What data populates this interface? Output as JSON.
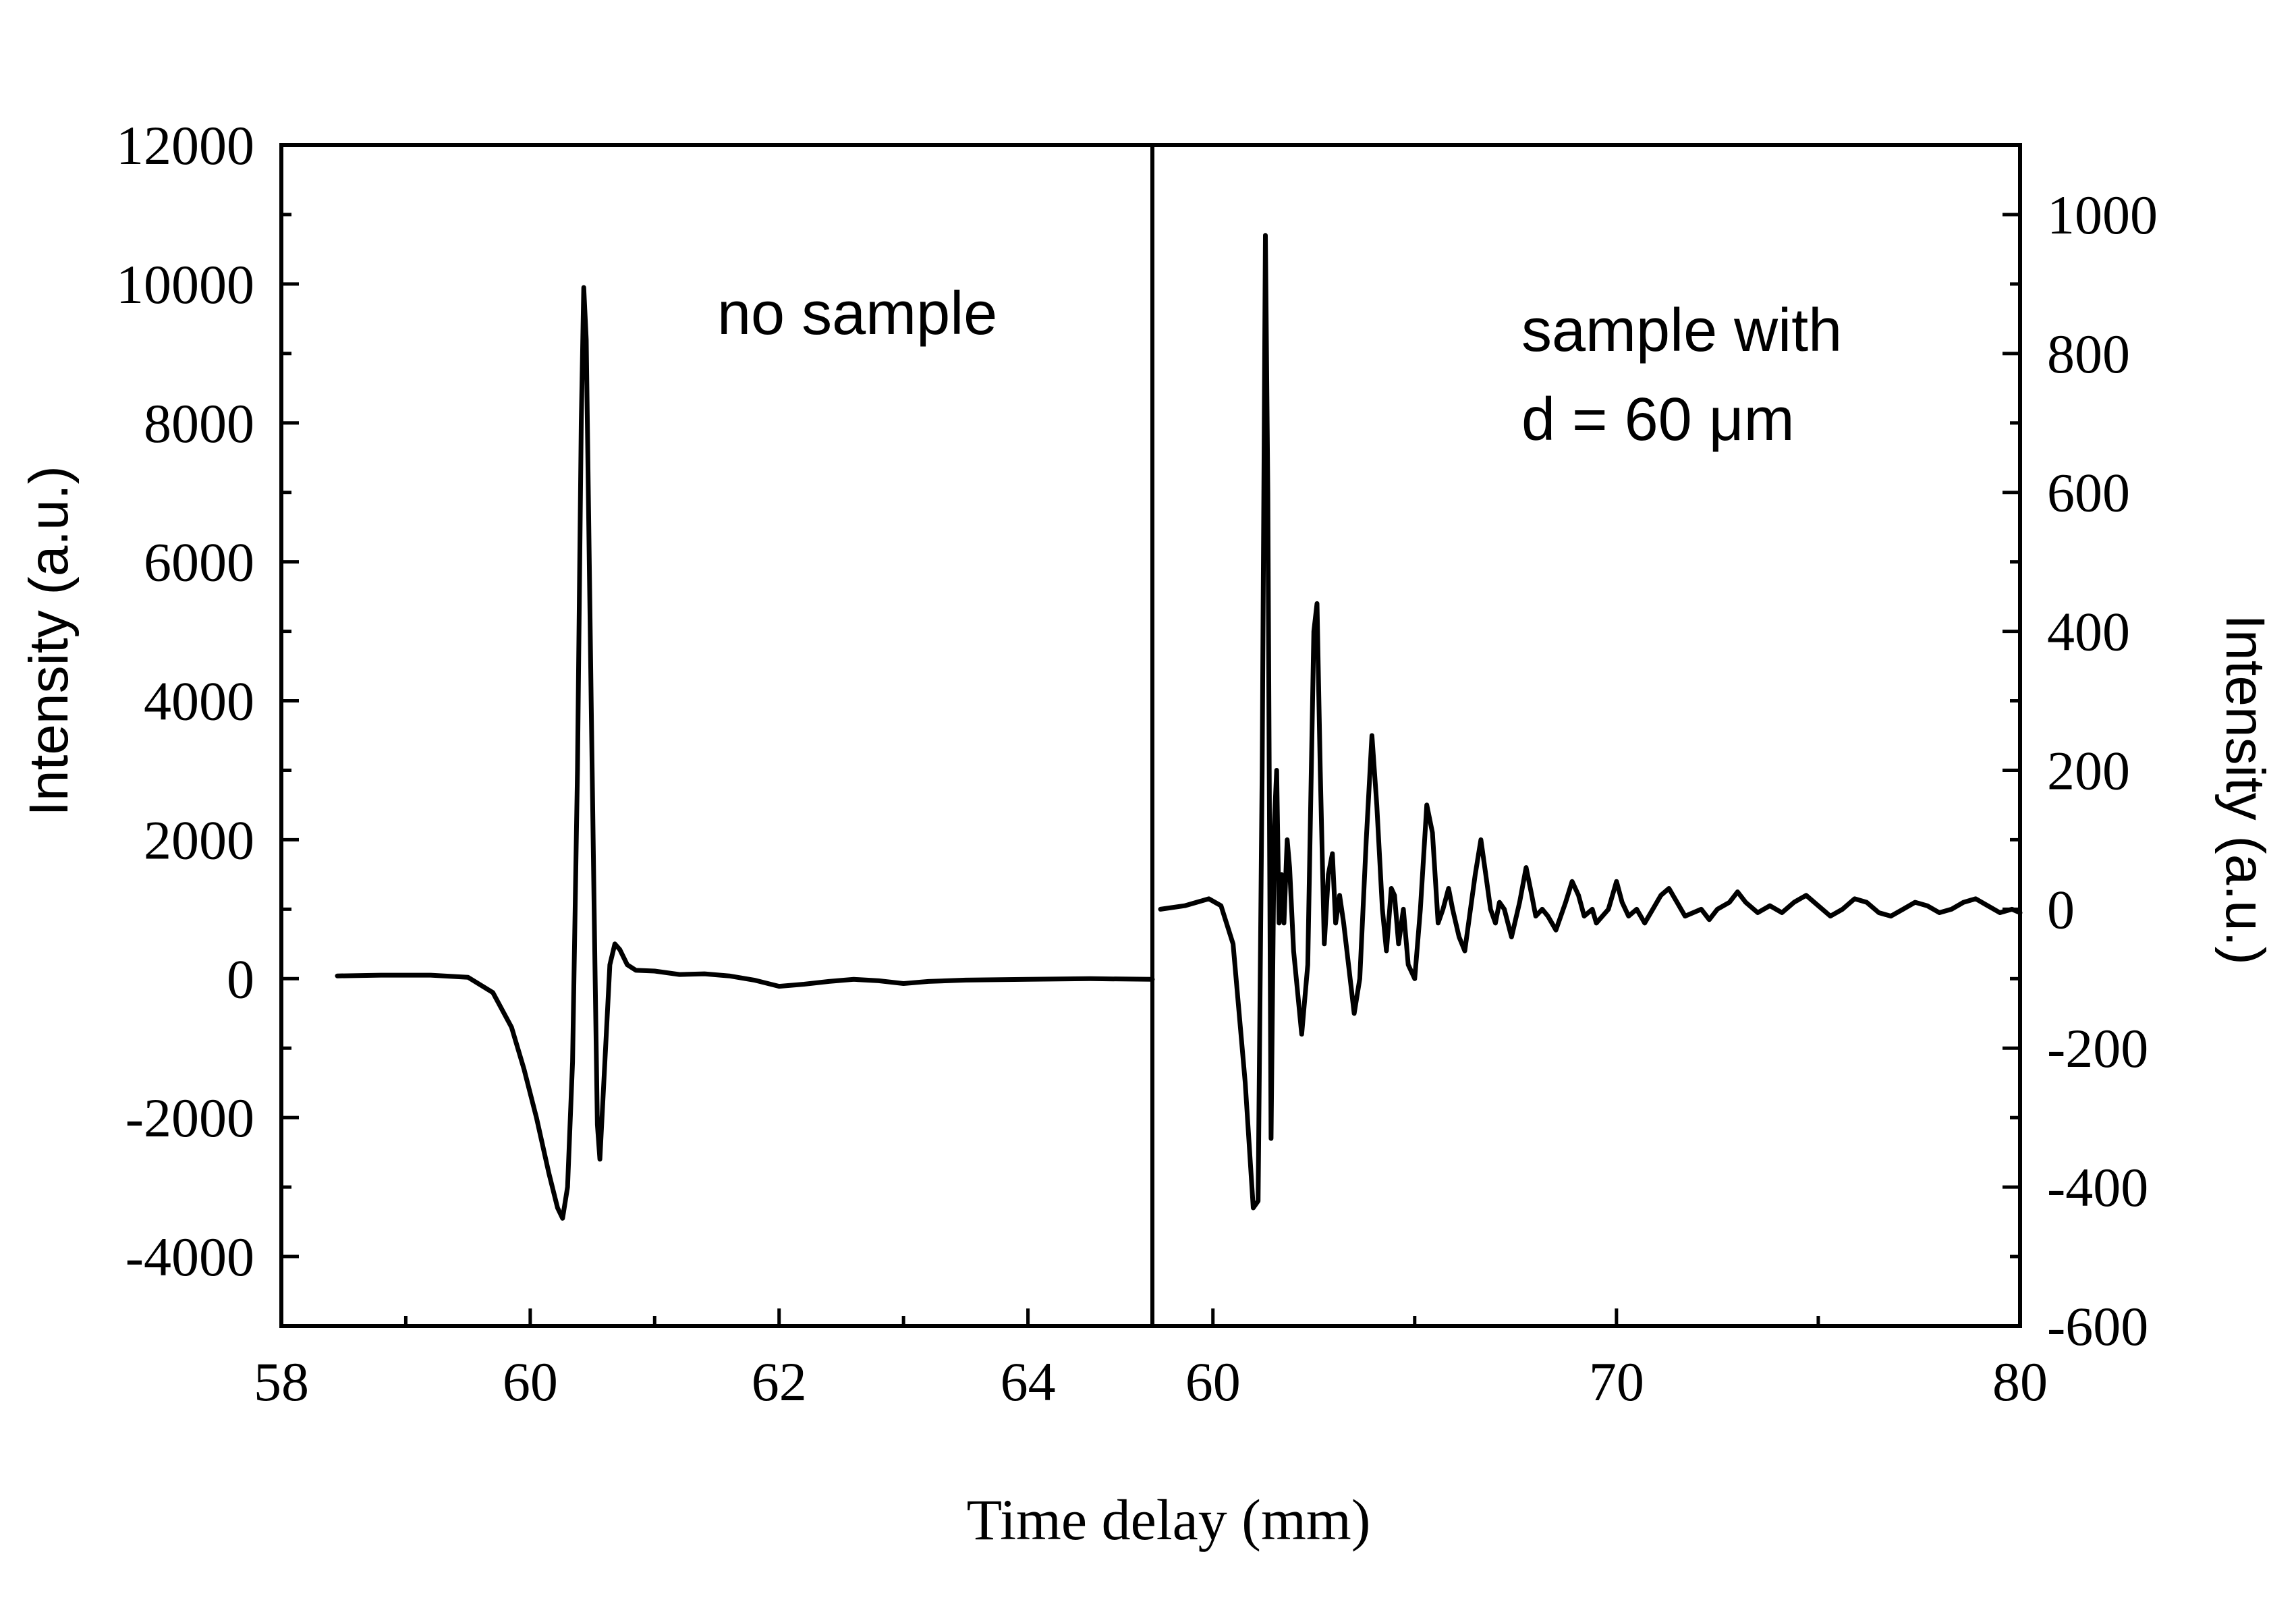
{
  "chart_data": [
    {
      "type": "line",
      "panel": "left",
      "annotation": "no sample",
      "xlabel": "Time delay (mm)",
      "ylabel": "Intensity (a.u.)",
      "xlim": [
        58,
        65
      ],
      "ylim": [
        -5000,
        12000
      ],
      "xticks": [
        58,
        60,
        62,
        64
      ],
      "xticks_minor": [
        59,
        61,
        63
      ],
      "yticks": [
        12000,
        10000,
        8000,
        6000,
        4000,
        2000,
        0,
        -2000,
        -4000
      ],
      "xtick_labels": [
        "58",
        "60",
        "62",
        "64"
      ],
      "ytick_labels": [
        "12000",
        "10000",
        "8000",
        "6000",
        "4000",
        "2000",
        "0",
        "-2000",
        "-4000"
      ],
      "series": [
        {
          "name": "no sample",
          "points": [
            [
              58.45,
              40
            ],
            [
              58.8,
              50
            ],
            [
              59.2,
              50
            ],
            [
              59.5,
              20
            ],
            [
              59.7,
              -200
            ],
            [
              59.85,
              -700
            ],
            [
              59.95,
              -1300
            ],
            [
              60.05,
              -2000
            ],
            [
              60.15,
              -2800
            ],
            [
              60.22,
              -3300
            ],
            [
              60.26,
              -3450
            ],
            [
              60.3,
              -3000
            ],
            [
              60.34,
              -1200
            ],
            [
              60.38,
              3000
            ],
            [
              60.41,
              8000
            ],
            [
              60.43,
              9950
            ],
            [
              60.45,
              9200
            ],
            [
              60.49,
              4000
            ],
            [
              60.52,
              200
            ],
            [
              60.54,
              -2100
            ],
            [
              60.56,
              -2600
            ],
            [
              60.6,
              -1200
            ],
            [
              60.64,
              200
            ],
            [
              60.68,
              500
            ],
            [
              60.72,
              420
            ],
            [
              60.78,
              200
            ],
            [
              60.85,
              120
            ],
            [
              61.0,
              110
            ],
            [
              61.2,
              60
            ],
            [
              61.4,
              70
            ],
            [
              61.6,
              40
            ],
            [
              61.8,
              -20
            ],
            [
              62.0,
              -110
            ],
            [
              62.2,
              -80
            ],
            [
              62.4,
              -40
            ],
            [
              62.6,
              -10
            ],
            [
              62.8,
              -30
            ],
            [
              63.0,
              -70
            ],
            [
              63.2,
              -40
            ],
            [
              63.5,
              -20
            ],
            [
              64.0,
              -10
            ],
            [
              64.5,
              0
            ],
            [
              65.0,
              -10
            ]
          ]
        }
      ]
    },
    {
      "type": "line",
      "panel": "right",
      "annotation_line1": "sample with",
      "annotation_line2": "d = 60 μm",
      "xlabel": "Time delay (mm)",
      "ylabel": "Intensity (a.u.)",
      "xlim": [
        58.5,
        80
      ],
      "ylim": [
        -600,
        1100
      ],
      "xticks": [
        60,
        70,
        80
      ],
      "xticks_minor": [
        65,
        75
      ],
      "yticks": [
        1000,
        800,
        600,
        400,
        200,
        0,
        -200,
        -400,
        -600
      ],
      "xtick_labels": [
        "60",
        "70",
        "80"
      ],
      "ytick_labels": [
        "1000",
        "800",
        "600",
        "400",
        "200",
        "0",
        "-200",
        "-400",
        "-600"
      ],
      "series": [
        {
          "name": "sample with d = 60 μm",
          "points": [
            [
              58.7,
              0
            ],
            [
              59.3,
              5
            ],
            [
              59.9,
              15
            ],
            [
              60.2,
              5
            ],
            [
              60.5,
              -50
            ],
            [
              60.8,
              -250
            ],
            [
              61.0,
              -430
            ],
            [
              61.12,
              -420
            ],
            [
              61.22,
              200
            ],
            [
              61.3,
              970
            ],
            [
              61.36,
              600
            ],
            [
              61.44,
              -330
            ],
            [
              61.52,
              120
            ],
            [
              61.58,
              200
            ],
            [
              61.64,
              -20
            ],
            [
              61.7,
              50
            ],
            [
              61.76,
              -20
            ],
            [
              61.84,
              100
            ],
            [
              61.9,
              60
            ],
            [
              62.0,
              -60
            ],
            [
              62.2,
              -180
            ],
            [
              62.35,
              -80
            ],
            [
              62.5,
              400
            ],
            [
              62.58,
              440
            ],
            [
              62.66,
              200
            ],
            [
              62.76,
              -50
            ],
            [
              62.86,
              50
            ],
            [
              62.96,
              80
            ],
            [
              63.04,
              -20
            ],
            [
              63.14,
              20
            ],
            [
              63.24,
              -20
            ],
            [
              63.5,
              -150
            ],
            [
              63.64,
              -100
            ],
            [
              63.8,
              100
            ],
            [
              63.94,
              250
            ],
            [
              64.06,
              150
            ],
            [
              64.2,
              0
            ],
            [
              64.3,
              -60
            ],
            [
              64.42,
              30
            ],
            [
              64.5,
              20
            ],
            [
              64.6,
              -50
            ],
            [
              64.72,
              0
            ],
            [
              64.84,
              -80
            ],
            [
              65.0,
              -100
            ],
            [
              65.14,
              0
            ],
            [
              65.3,
              150
            ],
            [
              65.44,
              110
            ],
            [
              65.58,
              -20
            ],
            [
              65.7,
              0
            ],
            [
              65.84,
              30
            ],
            [
              65.94,
              0
            ],
            [
              66.1,
              -40
            ],
            [
              66.24,
              -60
            ],
            [
              66.5,
              50
            ],
            [
              66.64,
              100
            ],
            [
              66.76,
              50
            ],
            [
              66.88,
              0
            ],
            [
              67.0,
              -20
            ],
            [
              67.1,
              10
            ],
            [
              67.22,
              0
            ],
            [
              67.4,
              -40
            ],
            [
              67.6,
              10
            ],
            [
              67.76,
              60
            ],
            [
              67.9,
              20
            ],
            [
              68.0,
              -10
            ],
            [
              68.16,
              0
            ],
            [
              68.3,
              -10
            ],
            [
              68.5,
              -30
            ],
            [
              68.74,
              10
            ],
            [
              68.9,
              40
            ],
            [
              69.06,
              20
            ],
            [
              69.2,
              -10
            ],
            [
              69.4,
              0
            ],
            [
              69.5,
              -20
            ],
            [
              69.8,
              0
            ],
            [
              70.0,
              40
            ],
            [
              70.14,
              10
            ],
            [
              70.3,
              -10
            ],
            [
              70.5,
              0
            ],
            [
              70.7,
              -20
            ],
            [
              70.9,
              0
            ],
            [
              71.1,
              20
            ],
            [
              71.3,
              30
            ],
            [
              71.5,
              10
            ],
            [
              71.7,
              -10
            ],
            [
              71.9,
              -5
            ],
            [
              72.1,
              0
            ],
            [
              72.3,
              -15
            ],
            [
              72.5,
              0
            ],
            [
              72.8,
              10
            ],
            [
              73.0,
              25
            ],
            [
              73.2,
              10
            ],
            [
              73.5,
              -5
            ],
            [
              73.8,
              5
            ],
            [
              74.1,
              -5
            ],
            [
              74.4,
              10
            ],
            [
              74.7,
              20
            ],
            [
              75.0,
              5
            ],
            [
              75.3,
              -10
            ],
            [
              75.6,
              0
            ],
            [
              75.9,
              15
            ],
            [
              76.2,
              10
            ],
            [
              76.5,
              -5
            ],
            [
              76.8,
              -10
            ],
            [
              77.1,
              0
            ],
            [
              77.4,
              10
            ],
            [
              77.7,
              5
            ],
            [
              78.0,
              -5
            ],
            [
              78.3,
              0
            ],
            [
              78.6,
              10
            ],
            [
              78.9,
              15
            ],
            [
              79.2,
              5
            ],
            [
              79.5,
              -5
            ],
            [
              79.8,
              0
            ],
            [
              80.0,
              -5
            ]
          ]
        }
      ]
    }
  ]
}
